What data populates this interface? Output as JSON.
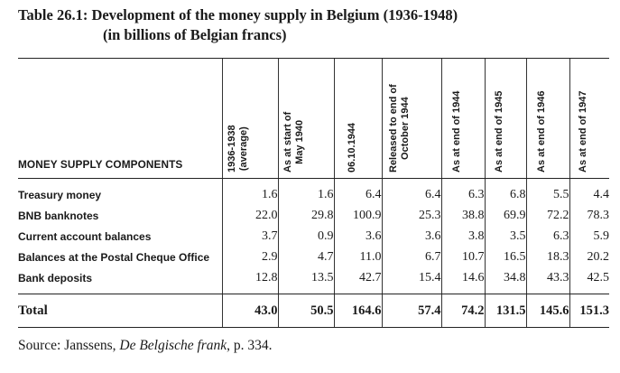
{
  "title": {
    "line1": "Table 26.1: Development of the money supply in Belgium (1936-1948)",
    "line2": "(in billions of Belgian francs)"
  },
  "table": {
    "row_header": "MONEY SUPPLY COMPONENTS",
    "columns": [
      [
        "1936-1938",
        "(average)"
      ],
      [
        "As at start of",
        "May 1940"
      ],
      [
        "06.10.1944"
      ],
      [
        "Released to end of",
        "October 1944"
      ],
      [
        "As at end of 1944"
      ],
      [
        "As at end of 1945"
      ],
      [
        "As at end of 1946"
      ],
      [
        "As at end of 1947"
      ]
    ],
    "rows": [
      {
        "label": "Treasury money",
        "values": [
          "1.6",
          "1.6",
          "6.4",
          "6.4",
          "6.3",
          "6.8",
          "5.5",
          "4.4"
        ]
      },
      {
        "label": "BNB banknotes",
        "values": [
          "22.0",
          "29.8",
          "100.9",
          "25.3",
          "38.8",
          "69.9",
          "72.2",
          "78.3"
        ]
      },
      {
        "label": "Current account balances",
        "values": [
          "3.7",
          "0.9",
          "3.6",
          "3.6",
          "3.8",
          "3.5",
          "6.3",
          "5.9"
        ]
      },
      {
        "label": "Balances at the Postal Cheque Office",
        "values": [
          "2.9",
          "4.7",
          "11.0",
          "6.7",
          "10.7",
          "16.5",
          "18.3",
          "20.2"
        ]
      },
      {
        "label": "Bank deposits",
        "values": [
          "12.8",
          "13.5",
          "42.7",
          "15.4",
          "14.6",
          "34.8",
          "43.3",
          "42.5"
        ]
      }
    ],
    "total": {
      "label": "Total",
      "values": [
        "43.0",
        "50.5",
        "164.6",
        "57.4",
        "74.2",
        "131.5",
        "145.6",
        "151.3"
      ]
    }
  },
  "source": {
    "prefix": "Source: Janssens, ",
    "work": "De Belgische frank",
    "suffix": ", p. 334."
  }
}
